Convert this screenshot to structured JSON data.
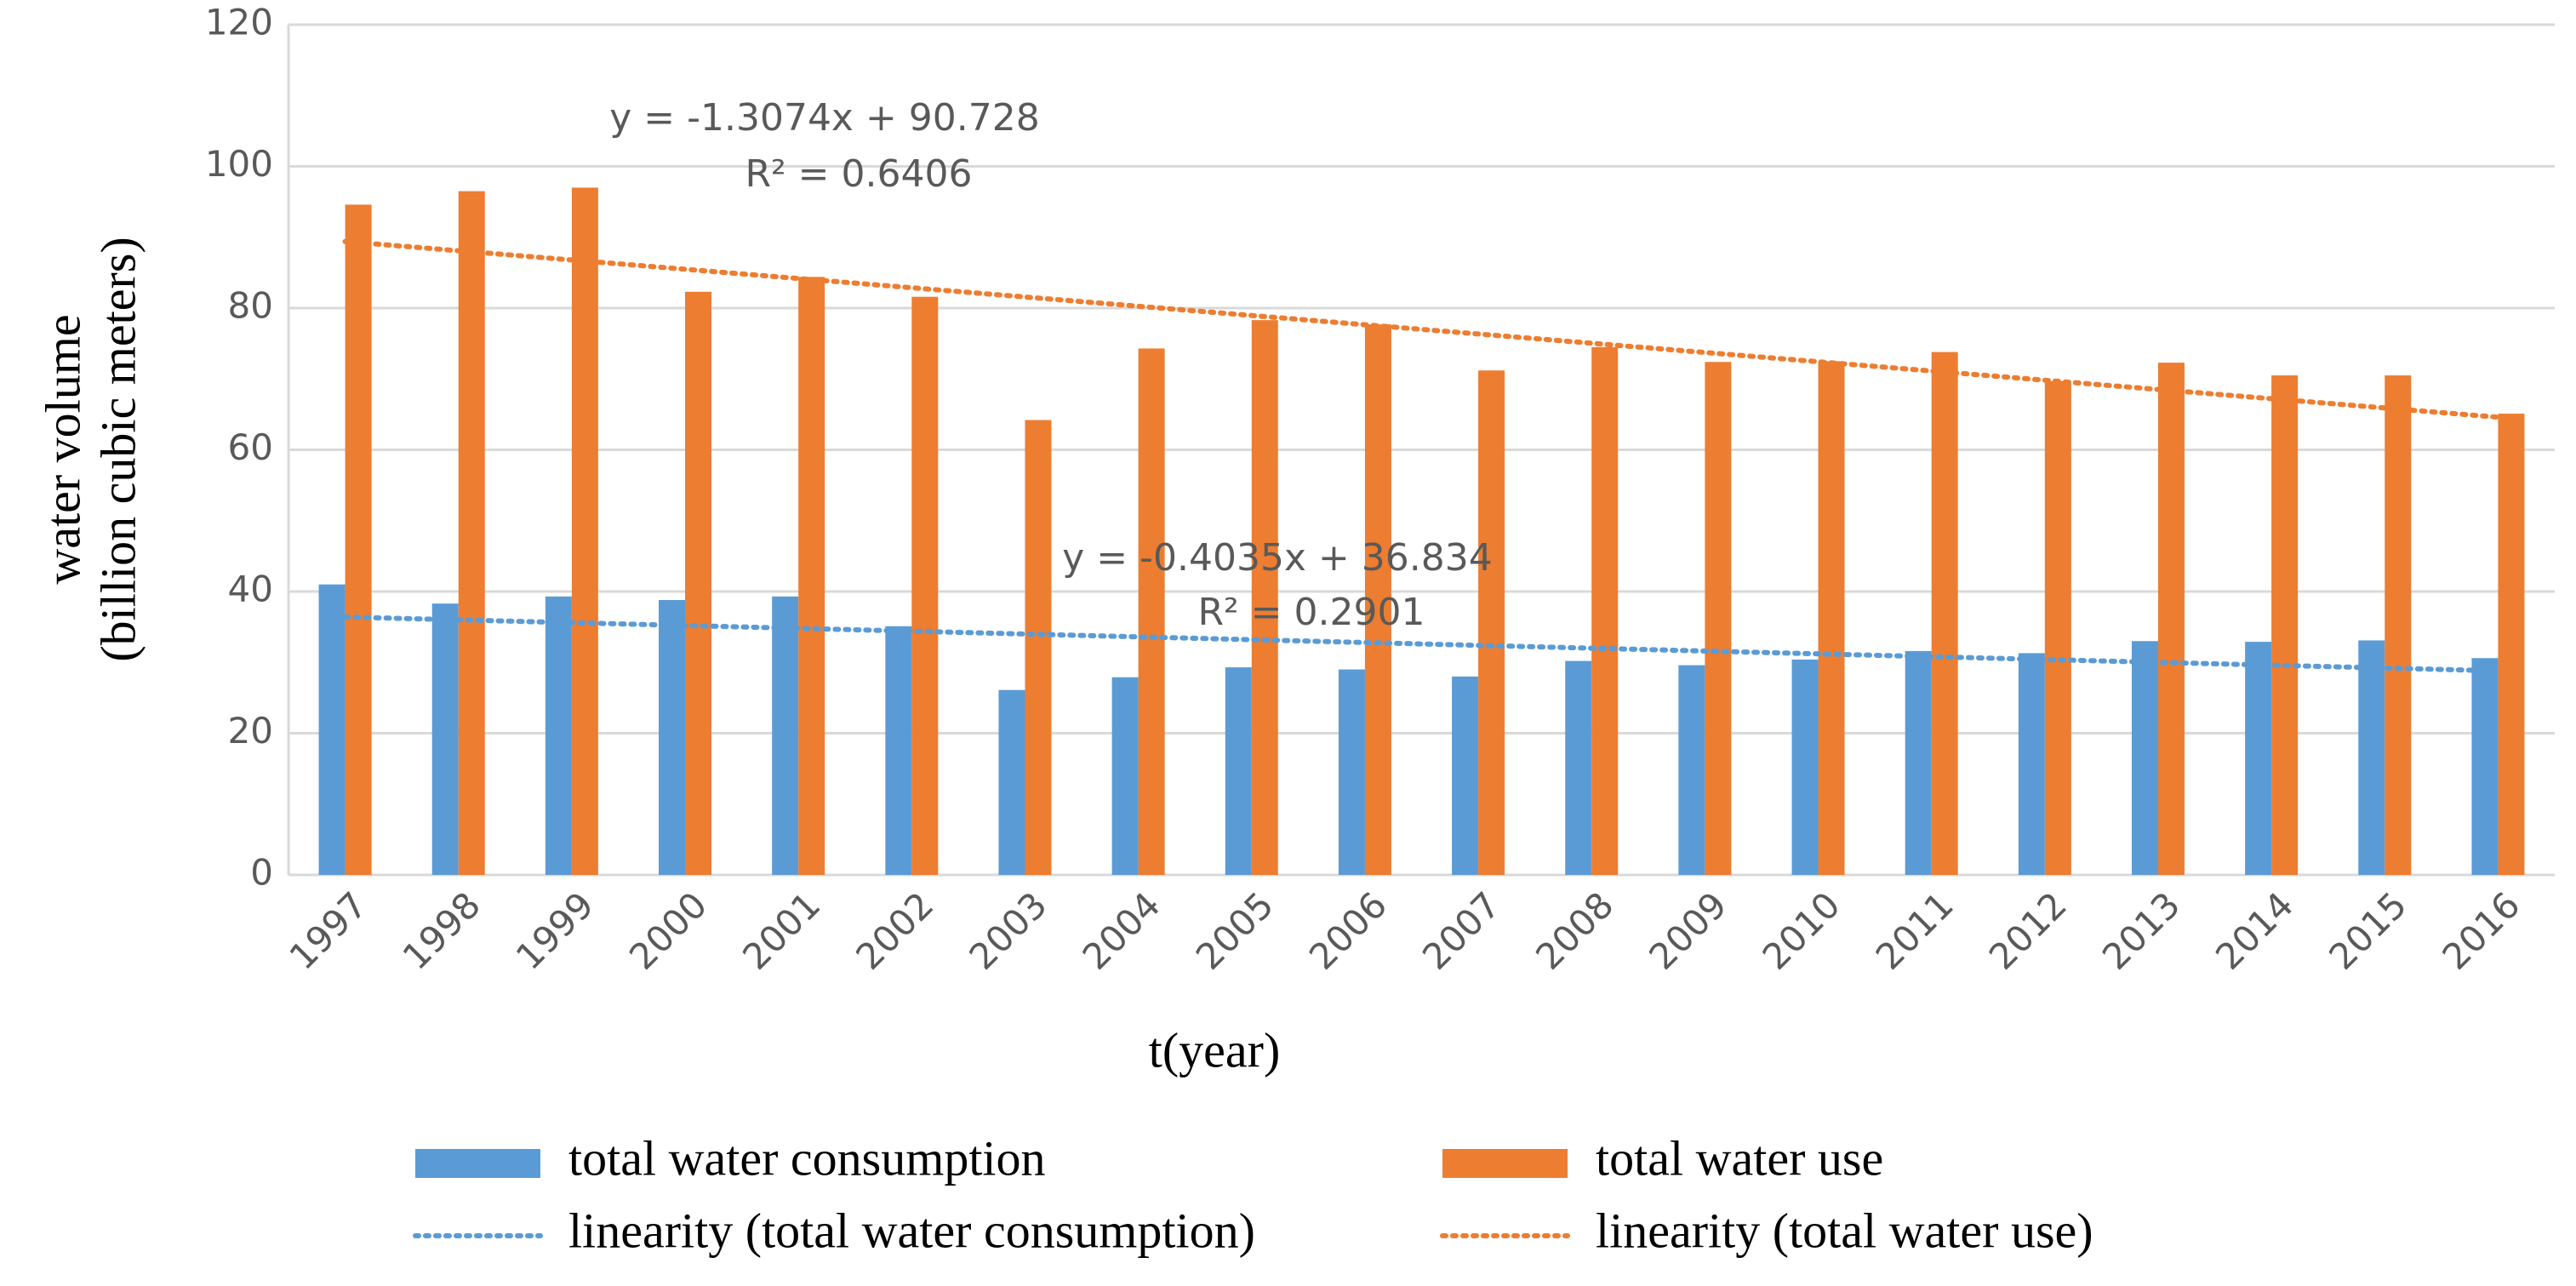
{
  "chart_data": {
    "type": "bar",
    "y_label": "water volume",
    "y_label_2": "(billion cubic meters)",
    "x_label": "t(year)",
    "categories": [
      "1997",
      "1998",
      "1999",
      "2000",
      "2001",
      "2002",
      "2003",
      "2004",
      "2005",
      "2006",
      "2007",
      "2008",
      "2009",
      "2010",
      "2011",
      "2012",
      "2013",
      "2014",
      "2015",
      "2016"
    ],
    "series": [
      {
        "name": "total water consumption",
        "color": "#5b9bd5",
        "values": [
          41,
          38.3,
          39.3,
          38.8,
          39.3,
          35.1,
          26.1,
          27.9,
          29.3,
          29.0,
          28.0,
          30.2,
          29.6,
          30.4,
          31.6,
          31.3,
          33.0,
          32.9,
          33.1,
          30.6
        ]
      },
      {
        "name": "total water use",
        "color": "#ed7d31",
        "values": [
          94.6,
          96.5,
          97.0,
          82.3,
          84.4,
          81.6,
          64.2,
          74.3,
          78.3,
          77.7,
          71.2,
          74.5,
          72.4,
          72.5,
          73.8,
          69.7,
          72.3,
          70.5,
          70.5,
          65.1
        ]
      }
    ],
    "trendlines": [
      {
        "name": "linearity (total water consumption)",
        "color": "#5b9bd5",
        "values": [
          36.4,
          28.8
        ],
        "equation": "y = -0.4035x + 36.834",
        "r2": "R² = 0.2901"
      },
      {
        "name": "linearity (total water use)",
        "color": "#ed7d31",
        "values": [
          89.4,
          64.6
        ],
        "equation": "y = -1.3074x + 90.728",
        "r2": "R² = 0.6406"
      }
    ],
    "ylim": [
      0,
      120
    ],
    "yticks": [
      0,
      20,
      40,
      60,
      80,
      100,
      120
    ],
    "grid": true
  }
}
